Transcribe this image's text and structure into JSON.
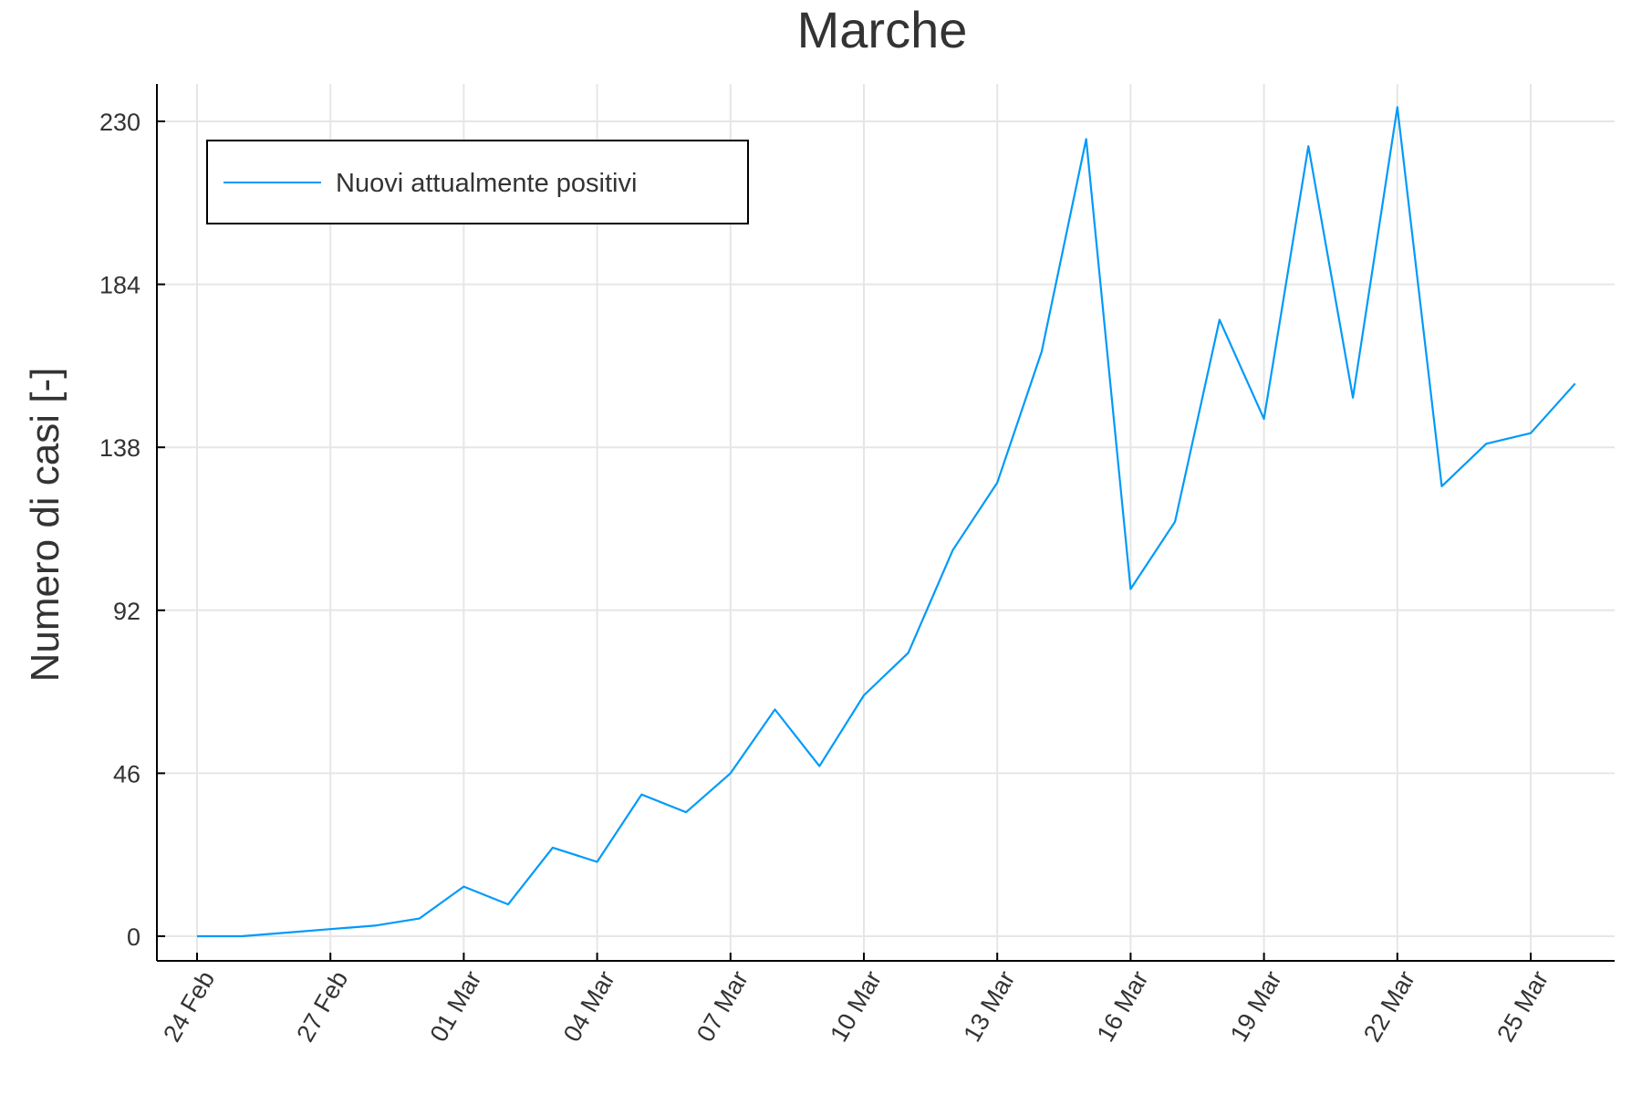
{
  "chart_data": {
    "type": "line",
    "title": "Marche",
    "xlabel": "",
    "ylabel": "Numero di casi [-]",
    "x_ticks": [
      "24 Feb",
      "27 Feb",
      "01 Mar",
      "04 Mar",
      "07 Mar",
      "10 Mar",
      "13 Mar",
      "16 Mar",
      "19 Mar",
      "22 Mar",
      "25 Mar"
    ],
    "y_ticks": [
      0,
      46,
      92,
      138,
      184,
      230
    ],
    "ylim": [
      -7,
      240
    ],
    "xlim": [
      "23 Feb",
      "26 Mar"
    ],
    "grid": true,
    "legend_position": "top-left",
    "series": [
      {
        "name": "Nuovi attualmente positivi",
        "color": "#009af9",
        "x": [
          "24 Feb",
          "25 Feb",
          "26 Feb",
          "27 Feb",
          "28 Feb",
          "29 Feb",
          "01 Mar",
          "02 Mar",
          "03 Mar",
          "04 Mar",
          "05 Mar",
          "06 Mar",
          "07 Mar",
          "08 Mar",
          "09 Mar",
          "10 Mar",
          "11 Mar",
          "12 Mar",
          "13 Mar",
          "14 Mar",
          "15 Mar",
          "16 Mar",
          "17 Mar",
          "18 Mar",
          "19 Mar",
          "20 Mar",
          "21 Mar",
          "22 Mar",
          "23 Mar",
          "24 Mar",
          "25 Mar",
          "26 Mar"
        ],
        "values": [
          0,
          0,
          1,
          2,
          3,
          5,
          14,
          9,
          25,
          21,
          40,
          35,
          46,
          64,
          48,
          68,
          80,
          109,
          128,
          165,
          225,
          98,
          117,
          174,
          146,
          223,
          152,
          234,
          127,
          139,
          142,
          156
        ]
      }
    ]
  }
}
